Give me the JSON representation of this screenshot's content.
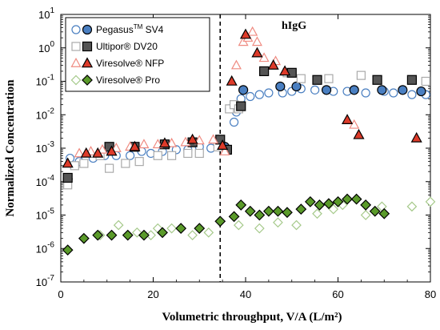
{
  "chart_data": {
    "type": "scatter",
    "xlabel": "Volumetric throughput,  V/A (L/m²)",
    "ylabel": "Normalized Concentration",
    "xlim": [
      0,
      80
    ],
    "ylim_exp": [
      -7,
      1
    ],
    "yscale": "log",
    "x_ticks": [
      "0",
      "20",
      "40",
      "60",
      "80"
    ],
    "y_ticks": [
      {
        "base": "10",
        "exp": "1"
      },
      {
        "base": "10",
        "exp": "0"
      },
      {
        "base": "10",
        "exp": "-1"
      },
      {
        "base": "10",
        "exp": "-2"
      },
      {
        "base": "10",
        "exp": "-3"
      },
      {
        "base": "10",
        "exp": "-4"
      },
      {
        "base": "10",
        "exp": "-5"
      },
      {
        "base": "10",
        "exp": "-6"
      },
      {
        "base": "10",
        "exp": "-7"
      }
    ],
    "annotation": "hIgG",
    "vline_x": 34.5,
    "legend_position": "top-left",
    "series": [
      {
        "name": "Pegasus™ SV4",
        "name_main": "Pegasus",
        "name_sup": "TM",
        "name_rest": " SV4",
        "marker": "circle",
        "color": "#4a7fc1",
        "stroke": "#000000",
        "open_color": "#4a7fc1",
        "filled": {
          "x": [
            1.5,
            35.5,
            39.5,
            47.5,
            51,
            57.5,
            63.5,
            69.5,
            74,
            78
          ],
          "y": [
            0.00012,
            0.0011,
            0.055,
            0.07,
            0.07,
            0.055,
            0.055,
            0.055,
            0.055,
            0.05
          ]
        },
        "open": {
          "x": [
            2,
            4,
            7,
            9.5,
            12,
            15,
            17.5,
            19.5,
            22,
            25,
            27.5,
            30,
            32.5,
            35,
            36.5,
            37.5,
            38,
            39,
            41,
            43,
            45,
            48,
            50,
            52,
            55,
            59,
            62,
            66,
            70,
            72,
            76,
            79
          ],
          "y": [
            0.0005,
            0.0004,
            0.0005,
            0.0006,
            0.0006,
            0.0006,
            0.0008,
            0.0007,
            0.0008,
            0.0009,
            0.0009,
            0.0011,
            0.001,
            0.0012,
            0.015,
            0.006,
            0.012,
            0.03,
            0.035,
            0.04,
            0.045,
            0.045,
            0.05,
            0.06,
            0.055,
            0.05,
            0.05,
            0.045,
            0.05,
            0.045,
            0.04,
            0.04
          ]
        }
      },
      {
        "name": "Ultipor® DV20",
        "name_main": "Ultipor® DV20",
        "name_sup": "",
        "name_rest": "",
        "marker": "square",
        "color": "#555555",
        "stroke": "#000000",
        "open_color": "#aaaaaa",
        "filled": {
          "x": [
            1.5,
            10.5,
            16,
            22.5,
            28.5,
            34.5,
            36,
            39,
            44,
            50,
            55.5,
            68.5,
            76
          ],
          "y": [
            0.00013,
            0.0011,
            0.0011,
            0.0013,
            0.0015,
            0.0018,
            0.0009,
            0.018,
            0.2,
            0.18,
            0.11,
            0.11,
            0.11
          ]
        },
        "open": {
          "x": [
            1.5,
            3,
            5,
            8.5,
            10.5,
            14,
            17,
            21,
            24,
            27.5,
            30,
            34,
            36.5,
            37.5,
            38.5,
            49,
            52,
            58,
            65,
            79
          ],
          "y": [
            8e-05,
            0.0003,
            0.00035,
            0.0006,
            0.00025,
            0.00035,
            0.0004,
            0.0006,
            0.0006,
            0.0007,
            0.0007,
            0.0011,
            0.015,
            0.02,
            0.015,
            0.18,
            0.12,
            0.12,
            0.15,
            0.1
          ]
        }
      },
      {
        "name": "Viresolve® NFP",
        "name_main": "Viresolve® NFP",
        "name_sup": "",
        "name_rest": "",
        "marker": "triangle",
        "color": "#dd3b2a",
        "stroke": "#000000",
        "open_color": "#ef8a80",
        "filled": {
          "x": [
            1.5,
            5.5,
            8,
            11,
            16,
            22.5,
            28.5,
            35,
            37,
            40,
            42.5,
            46,
            48.5,
            62,
            64.5,
            77
          ],
          "y": [
            0.00035,
            0.0007,
            0.0007,
            0.0008,
            0.0011,
            0.0014,
            0.0018,
            0.0012,
            0.1,
            2.5,
            0.7,
            0.3,
            0.2,
            0.007,
            0.0025,
            0.002
          ]
        },
        "open": {
          "x": [
            4,
            6.5,
            9,
            12,
            15,
            18,
            21,
            24,
            27,
            30,
            33,
            35.5,
            38,
            39.5,
            40.5,
            41.5,
            42.5,
            44,
            46.5,
            48.5,
            63.5
          ],
          "y": [
            0.0007,
            0.0008,
            0.0009,
            0.001,
            0.0011,
            0.0013,
            0.0013,
            0.0014,
            0.0015,
            0.0017,
            0.0018,
            0.0008,
            0.3,
            1.5,
            2,
            3,
            1.5,
            0.5,
            0.4,
            0.2,
            0.005
          ]
        }
      },
      {
        "name": "Viresolve® Pro",
        "name_main": "Viresolve® Pro",
        "name_sup": "",
        "name_rest": "",
        "marker": "diamond",
        "color": "#5a9a2a",
        "stroke": "#000000",
        "open_color": "#a5c98a",
        "filled": {
          "x": [
            1.5,
            5,
            8,
            11,
            14.5,
            18,
            22,
            26,
            30,
            34.5,
            37.5,
            39,
            41,
            43,
            45,
            47,
            49,
            52,
            54,
            56,
            58,
            60,
            62,
            64,
            66,
            68,
            70
          ],
          "y": [
            9e-07,
            2e-06,
            2.5e-06,
            2.5e-06,
            2.5e-06,
            2.5e-06,
            3e-06,
            4e-06,
            4e-06,
            6.5e-06,
            9e-06,
            2e-05,
            1.3e-05,
            1e-05,
            1.3e-05,
            1.3e-05,
            1.2e-05,
            1.5e-05,
            2.5e-05,
            2e-05,
            2.2e-05,
            2.5e-05,
            3e-05,
            3e-05,
            2e-05,
            1.3e-05,
            1.1e-05
          ]
        },
        "open": {
          "x": [
            5,
            8.5,
            12.5,
            16.5,
            19.5,
            21,
            24,
            28.5,
            32,
            38.5,
            43,
            47,
            51,
            55.5,
            59,
            61,
            66,
            69.5,
            76,
            80
          ],
          "y": [
            2e-06,
            2.5e-06,
            5e-06,
            3e-06,
            2.5e-06,
            4e-06,
            4e-06,
            2.5e-06,
            3e-06,
            5e-06,
            4e-06,
            6e-06,
            5e-06,
            1.1e-05,
            1.5e-05,
            2e-05,
            1e-05,
            1.8e-05,
            1.8e-05,
            2.5e-05
          ]
        }
      }
    ]
  }
}
